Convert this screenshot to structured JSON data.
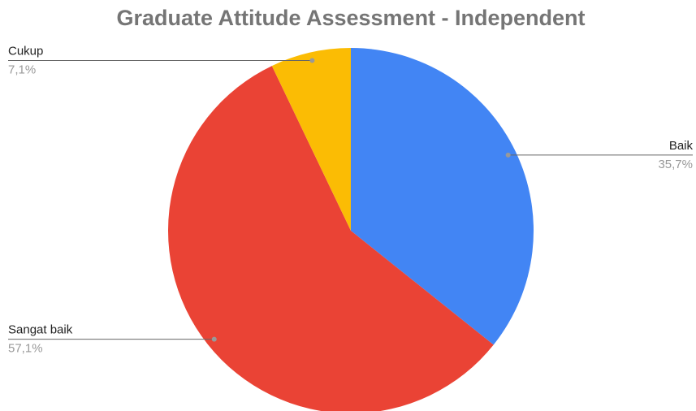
{
  "chart_data": {
    "type": "pie",
    "title": "Graduate Attitude Assessment - Independent",
    "categories": [
      "Baik",
      "Sangat baik",
      "Cukup"
    ],
    "values": [
      35.7,
      57.1,
      7.1
    ],
    "value_labels": [
      "35,7%",
      "57,1%",
      "7,1%"
    ],
    "colors": [
      "#4285f4",
      "#ea4335",
      "#fbbc04"
    ]
  }
}
